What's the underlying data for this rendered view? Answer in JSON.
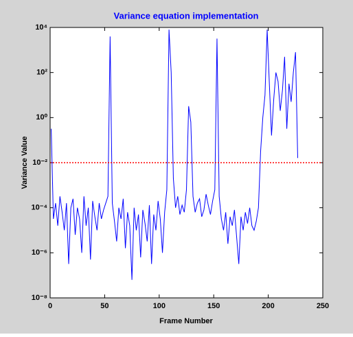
{
  "chart_data": {
    "type": "line",
    "title": "Variance equation implementation",
    "xlabel": "Frame Number",
    "ylabel": "Variance Value",
    "xlim": [
      0,
      250
    ],
    "xticks": [
      0,
      50,
      100,
      150,
      200,
      250
    ],
    "ylim": [
      1e-08,
      10000
    ],
    "ylog": true,
    "yticks": [
      {
        "value": 1e-08,
        "label": "10⁻⁸"
      },
      {
        "value": 1e-06,
        "label": "10⁻⁶"
      },
      {
        "value": 0.0001,
        "label": "10⁻⁴"
      },
      {
        "value": 0.01,
        "label": "10⁻²"
      },
      {
        "value": 1,
        "label": "10⁰"
      },
      {
        "value": 100,
        "label": "10²"
      },
      {
        "value": 10000,
        "label": "10⁴"
      }
    ],
    "series": [
      {
        "color": "#0000ff",
        "style": "solid",
        "x": [
          1,
          3,
          5,
          7,
          9,
          11,
          13,
          15,
          17,
          19,
          21,
          23,
          25,
          27,
          29,
          31,
          33,
          35,
          37,
          39,
          41,
          43,
          45,
          47,
          49,
          51,
          53,
          55,
          57,
          59,
          61,
          63,
          65,
          67,
          69,
          71,
          73,
          75,
          77,
          79,
          81,
          83,
          85,
          87,
          89,
          91,
          93,
          95,
          97,
          99,
          101,
          103,
          105,
          107,
          109,
          111,
          113,
          115,
          117,
          119,
          121,
          123,
          125,
          127,
          129,
          131,
          133,
          135,
          137,
          139,
          141,
          143,
          145,
          147,
          149,
          151,
          153,
          155,
          157,
          159,
          161,
          163,
          165,
          167,
          169,
          171,
          173,
          175,
          177,
          179,
          181,
          183,
          185,
          187,
          189,
          191,
          193,
          195,
          197,
          199,
          201,
          203,
          205,
          207,
          209,
          211,
          213,
          215,
          217,
          219,
          221,
          223,
          225,
          227
        ],
        "values": [
          0.32,
          3.2e-05,
          0.00016,
          1.6e-05,
          0.00032,
          6.3e-05,
          1e-05,
          0.00016,
          3.2e-07,
          0.0001,
          0.00025,
          6.3e-06,
          0.0001,
          3.2e-05,
          1e-06,
          0.00032,
          1.6e-05,
          0.0001,
          5e-07,
          0.0002,
          4e-05,
          1e-05,
          0.00016,
          3.2e-05,
          8e-05,
          0.00016,
          0.00032,
          4000,
          0.00016,
          2.5e-05,
          3.2e-06,
          0.0001,
          3.2e-05,
          0.00025,
          1.6e-06,
          6.3e-05,
          1.6e-05,
          6.3e-08,
          0.0001,
          1e-05,
          5e-05,
          6.3e-07,
          8e-05,
          2e-05,
          3.2e-06,
          0.00013,
          3.2e-07,
          5e-05,
          1e-05,
          0.0002,
          3.2e-05,
          1e-06,
          6.3e-05,
          0.00063,
          8000,
          100,
          0.002,
          0.0001,
          0.00032,
          5e-05,
          0.00013,
          6.3e-05,
          0.00063,
          3.2,
          0.63,
          0.00032,
          6.3e-05,
          0.00016,
          0.00025,
          4e-05,
          8e-05,
          0.0004,
          0.00013,
          5e-05,
          0.0002,
          0.00063,
          3200,
          0.00032,
          3.2e-05,
          1e-05,
          6.3e-05,
          2.5e-06,
          4e-05,
          1.6e-05,
          8e-05,
          5e-06,
          3.2e-07,
          4e-05,
          1e-05,
          6.3e-05,
          2e-05,
          0.0001,
          1.6e-05,
          1e-05,
          2.5e-05,
          0.0001,
          0.032,
          1,
          10,
          8000,
          32,
          0.16,
          6.3,
          100,
          40,
          2,
          16,
          500,
          0.32,
          32,
          5,
          100,
          800,
          0.016
        ]
      },
      {
        "color": "#ff0000",
        "style": "dotted",
        "x": [
          0,
          250
        ],
        "values": [
          0.01,
          0.01
        ]
      }
    ]
  }
}
